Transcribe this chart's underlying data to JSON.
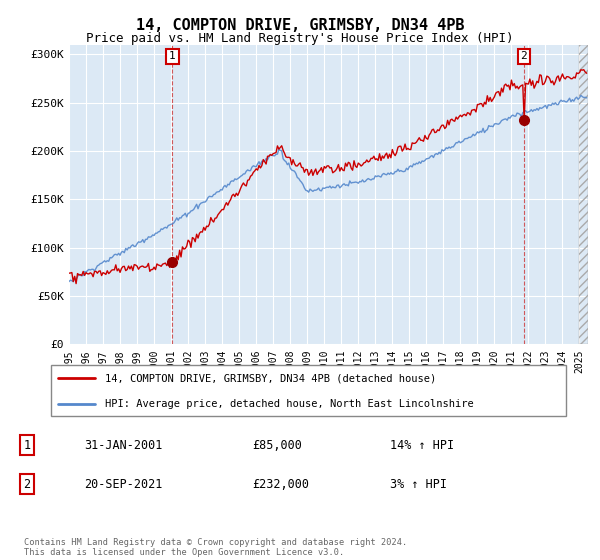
{
  "title": "14, COMPTON DRIVE, GRIMSBY, DN34 4PB",
  "subtitle": "Price paid vs. HM Land Registry's House Price Index (HPI)",
  "title_fontsize": 11,
  "subtitle_fontsize": 9,
  "background_color": "#ffffff",
  "plot_bg_color": "#dce9f5",
  "grid_color": "#ffffff",
  "ylim": [
    0,
    310000
  ],
  "yticks": [
    0,
    50000,
    100000,
    150000,
    200000,
    250000,
    300000
  ],
  "ytick_labels": [
    "£0",
    "£50K",
    "£100K",
    "£150K",
    "£200K",
    "£250K",
    "£300K"
  ],
  "sale1_date": "31-JAN-2001",
  "sale1_price": 85000,
  "sale1_hpi": "14% ↑ HPI",
  "sale1_x": 2001.08,
  "sale2_date": "20-SEP-2021",
  "sale2_price": 232000,
  "sale2_hpi": "3% ↑ HPI",
  "sale2_x": 2021.72,
  "legend_label1": "14, COMPTON DRIVE, GRIMSBY, DN34 4PB (detached house)",
  "legend_label2": "HPI: Average price, detached house, North East Lincolnshire",
  "line1_color": "#cc0000",
  "line2_color": "#5588cc",
  "marker_color": "#990000",
  "footnote": "Contains HM Land Registry data © Crown copyright and database right 2024.\nThis data is licensed under the Open Government Licence v3.0.",
  "xmin": 1995,
  "xmax": 2025.5,
  "xtick_years": [
    1995,
    1996,
    1997,
    1998,
    1999,
    2000,
    2001,
    2002,
    2003,
    2004,
    2005,
    2006,
    2007,
    2008,
    2009,
    2010,
    2011,
    2012,
    2013,
    2014,
    2015,
    2016,
    2017,
    2018,
    2019,
    2020,
    2021,
    2022,
    2023,
    2024,
    2025
  ]
}
